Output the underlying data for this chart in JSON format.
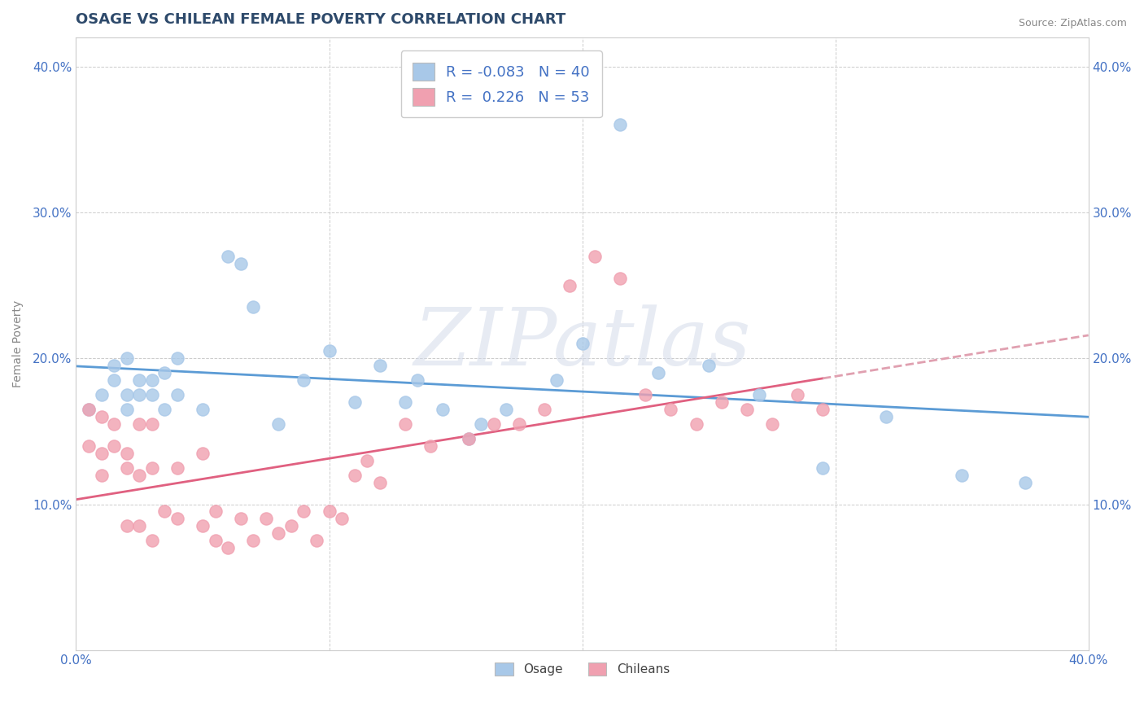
{
  "title": "OSAGE VS CHILEAN FEMALE POVERTY CORRELATION CHART",
  "source": "Source: ZipAtlas.com",
  "ylabel": "Female Poverty",
  "xlim": [
    0.0,
    0.4
  ],
  "ylim": [
    0.0,
    0.42
  ],
  "ytick_vals": [
    0.0,
    0.1,
    0.2,
    0.3,
    0.4
  ],
  "ytick_labels_left": [
    "",
    "10.0%",
    "20.0%",
    "30.0%",
    "40.0%"
  ],
  "ytick_labels_right": [
    "",
    "10.0%",
    "20.0%",
    "30.0%",
    "40.0%"
  ],
  "xtick_vals": [
    0.0,
    0.1,
    0.2,
    0.3,
    0.4
  ],
  "xtick_labels": [
    "0.0%",
    "",
    "",
    "",
    "40.0%"
  ],
  "osage_color": "#A8C8E8",
  "chilean_color": "#F0A0B0",
  "trend_osage_color": "#5B9BD5",
  "trend_chilean_color": "#E06080",
  "trend_chilean_dashed_color": "#E0A0B0",
  "background_color": "#FFFFFF",
  "grid_color": "#CCCCCC",
  "title_color": "#2E4A6B",
  "axis_label_color": "#4472C4",
  "legend_r_osage": "-0.083",
  "legend_n_osage": "40",
  "legend_r_chilean": "0.226",
  "legend_n_chilean": "53",
  "watermark": "ZIPatlas",
  "osage_x": [
    0.005,
    0.01,
    0.015,
    0.015,
    0.02,
    0.02,
    0.02,
    0.025,
    0.025,
    0.03,
    0.03,
    0.035,
    0.035,
    0.04,
    0.04,
    0.05,
    0.06,
    0.065,
    0.07,
    0.08,
    0.09,
    0.1,
    0.11,
    0.12,
    0.13,
    0.135,
    0.145,
    0.155,
    0.16,
    0.17,
    0.19,
    0.2,
    0.215,
    0.23,
    0.25,
    0.27,
    0.295,
    0.32,
    0.35,
    0.375
  ],
  "osage_y": [
    0.165,
    0.175,
    0.195,
    0.185,
    0.175,
    0.2,
    0.165,
    0.185,
    0.175,
    0.185,
    0.175,
    0.19,
    0.165,
    0.175,
    0.2,
    0.165,
    0.27,
    0.265,
    0.235,
    0.155,
    0.185,
    0.205,
    0.17,
    0.195,
    0.17,
    0.185,
    0.165,
    0.145,
    0.155,
    0.165,
    0.185,
    0.21,
    0.36,
    0.19,
    0.195,
    0.175,
    0.125,
    0.16,
    0.12,
    0.115
  ],
  "chilean_x": [
    0.005,
    0.005,
    0.01,
    0.01,
    0.01,
    0.015,
    0.015,
    0.02,
    0.02,
    0.02,
    0.025,
    0.025,
    0.025,
    0.03,
    0.03,
    0.03,
    0.035,
    0.04,
    0.04,
    0.05,
    0.05,
    0.055,
    0.055,
    0.06,
    0.065,
    0.07,
    0.075,
    0.08,
    0.085,
    0.09,
    0.095,
    0.1,
    0.105,
    0.11,
    0.115,
    0.12,
    0.13,
    0.14,
    0.155,
    0.165,
    0.175,
    0.185,
    0.195,
    0.205,
    0.215,
    0.225,
    0.235,
    0.245,
    0.255,
    0.265,
    0.275,
    0.285,
    0.295
  ],
  "chilean_y": [
    0.165,
    0.14,
    0.16,
    0.135,
    0.12,
    0.14,
    0.155,
    0.125,
    0.135,
    0.085,
    0.155,
    0.12,
    0.085,
    0.155,
    0.125,
    0.075,
    0.095,
    0.125,
    0.09,
    0.135,
    0.085,
    0.075,
    0.095,
    0.07,
    0.09,
    0.075,
    0.09,
    0.08,
    0.085,
    0.095,
    0.075,
    0.095,
    0.09,
    0.12,
    0.13,
    0.115,
    0.155,
    0.14,
    0.145,
    0.155,
    0.155,
    0.165,
    0.25,
    0.27,
    0.255,
    0.175,
    0.165,
    0.155,
    0.17,
    0.165,
    0.155,
    0.175,
    0.165
  ]
}
